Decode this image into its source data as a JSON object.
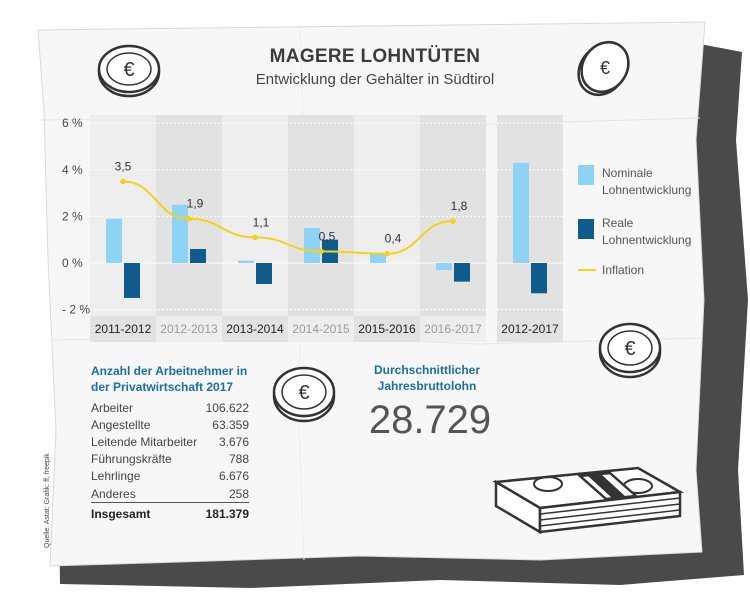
{
  "title": "MAGERE LOHNTÜTEN",
  "subtitle": "Entwicklung der Gehälter in Südtirol",
  "colors": {
    "nominal": "#8fd3f4",
    "real": "#0f5b8c",
    "inflation": "#f2d21b",
    "band_dark": "#e2e2e2",
    "band_light": "#eeeeee",
    "accent_text": "#1b6f9f"
  },
  "chart_data": {
    "type": "bar",
    "categories": [
      "2011-2012",
      "2012-2013",
      "2013-2014",
      "2014-2015",
      "2015-2016",
      "2016-2017"
    ],
    "category_label_shade": [
      "dark",
      "light",
      "dark",
      "light",
      "dark",
      "light"
    ],
    "series": [
      {
        "name": "Nominale Lohnentwicklung",
        "values": [
          1.9,
          2.5,
          0.1,
          1.5,
          0.4,
          -0.3
        ]
      },
      {
        "name": "Reale Lohnentwicklung",
        "values": [
          -1.5,
          0.6,
          -0.9,
          1.0,
          0.0,
          -0.8
        ]
      },
      {
        "name": "Inflation",
        "type": "line",
        "values": [
          3.5,
          1.9,
          1.1,
          0.5,
          0.4,
          1.8
        ],
        "labels": [
          "3,5",
          "1,9",
          "1,1",
          "0,5",
          "0,4",
          "1,8"
        ]
      }
    ],
    "yticks": [
      "6 %",
      "4 %",
      "2 %",
      "0 %",
      "- 2 %"
    ],
    "ylim": [
      -2,
      6
    ],
    "summary_panel": {
      "category": "2012-2017",
      "values": [
        4.3,
        -1.3
      ]
    },
    "legend": [
      "Nominale Lohnentwicklung",
      "Reale Lohnentwicklung",
      "Inflation"
    ],
    "legend_position": "right"
  },
  "legend": {
    "nominal_line1": "Nominale",
    "nominal_line2": "Lohnentwicklung",
    "real_line1": "Reale",
    "real_line2": "Lohnentwicklung",
    "inflation": "Inflation"
  },
  "workers_table": {
    "heading_line1": "Anzahl der Arbeitnehmer in",
    "heading_line2": "der Privatwirtschaft 2017",
    "rows": [
      {
        "label": "Arbeiter",
        "value": "106.622"
      },
      {
        "label": "Angestellte",
        "value": "63.359"
      },
      {
        "label": "Leitende Mitarbeiter",
        "value": "3.676"
      },
      {
        "label": "Führungskräfte",
        "value": "788"
      },
      {
        "label": "Lehrlinge",
        "value": "6.676"
      },
      {
        "label": "Anderes",
        "value": "258"
      }
    ],
    "total_label": "Insgesamt",
    "total_value": "181.379"
  },
  "average_salary": {
    "label_line1": "Durchschnittlicher",
    "label_line2": "Jahresbruttolohn",
    "value": "28.729"
  },
  "source": "Quelle: Astat; Grafik: ff, freepik",
  "icons": [
    "coin-icon",
    "coin-icon",
    "coin-icon",
    "coin-icon",
    "coin-icon",
    "money-stack-icon"
  ]
}
